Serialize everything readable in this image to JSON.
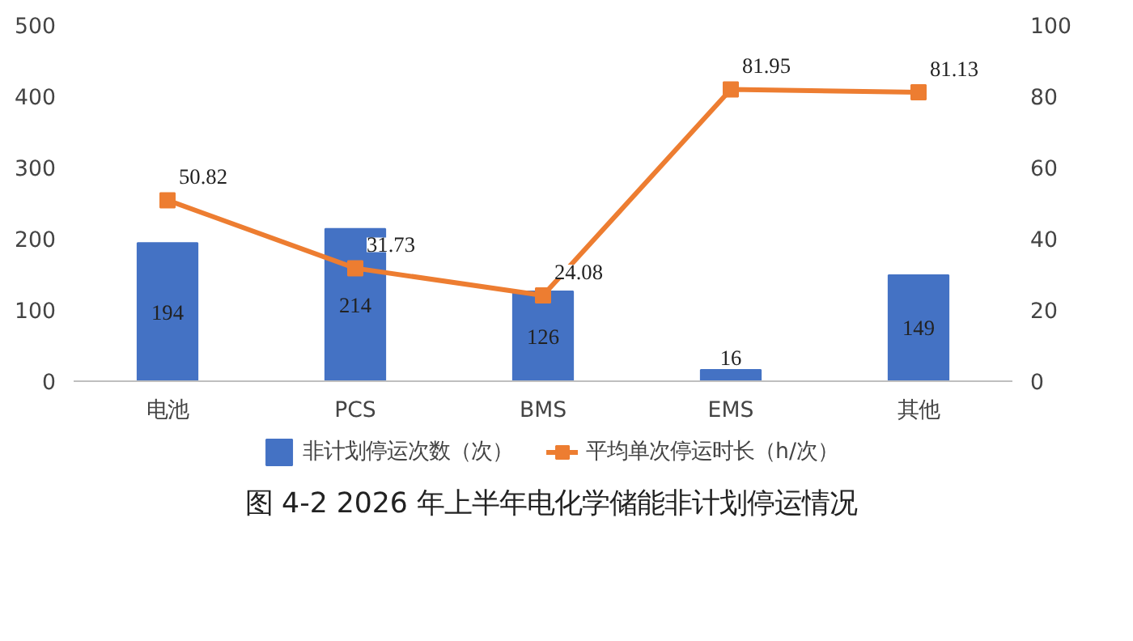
{
  "chart_data": {
    "type": "bar",
    "title": "图 4-2 2026 年上半年电化学储能非计划停运情况",
    "categories": [
      "电池",
      "PCS",
      "BMS",
      "EMS",
      "其他"
    ],
    "series": [
      {
        "name": "非计划停运次数（次）",
        "color": "#4472c4",
        "values": [
          194,
          214,
          126,
          16,
          149
        ]
      },
      {
        "name": "平均单次停运时长（h/次）",
        "color": "#ed7d31",
        "type": "line",
        "axis": "y2",
        "marker": "square",
        "values": [
          50.82,
          31.73,
          24.08,
          81.95,
          81.13
        ]
      }
    ],
    "ylim": [
      0,
      500
    ],
    "yticks": [
      0,
      100,
      200,
      300,
      400,
      500
    ],
    "y2lim": [
      0,
      100
    ],
    "y2ticks": [
      0,
      20,
      40,
      60,
      80,
      100
    ],
    "data_labels": true,
    "grid": false,
    "legend": "bottom"
  }
}
